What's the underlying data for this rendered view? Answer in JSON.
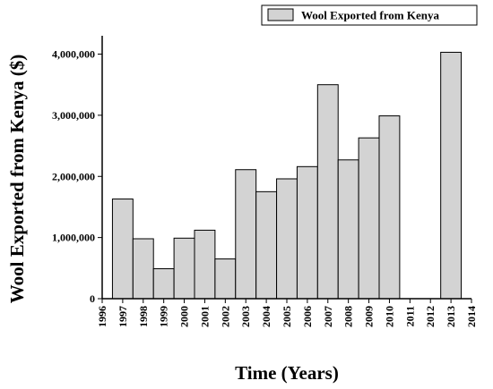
{
  "chart_data": {
    "type": "bar",
    "title": "",
    "xlabel": "Time (Years)",
    "ylabel": "Wool Exported from Kenya ($)",
    "legend": {
      "position": "top-right",
      "entries": [
        "Wool Exported from Kenya"
      ]
    },
    "xlim": [
      1996,
      2014
    ],
    "x_ticks": [
      "1996",
      "1997",
      "1998",
      "1999",
      "2000",
      "2001",
      "2002",
      "2003",
      "2004",
      "2005",
      "2006",
      "2007",
      "2008",
      "2009",
      "2010",
      "2011",
      "2012",
      "2013",
      "2014"
    ],
    "ylim": [
      0,
      4300000
    ],
    "y_ticks": [
      0,
      1000000,
      2000000,
      3000000,
      4000000
    ],
    "y_tick_labels": [
      "0",
      "1,000,000",
      "2,000,000",
      "3,000,000",
      "4,000,000"
    ],
    "grid": false,
    "series": [
      {
        "name": "Wool Exported from Kenya",
        "color": "#d3d3d3",
        "x": [
          1997,
          1998,
          1999,
          2000,
          2001,
          2002,
          2003,
          2004,
          2005,
          2006,
          2007,
          2008,
          2009,
          2010,
          2013
        ],
        "values": [
          1630000,
          980000,
          490000,
          990000,
          1120000,
          650000,
          2110000,
          1750000,
          1960000,
          2160000,
          3500000,
          2270000,
          2630000,
          2990000,
          4030000
        ]
      }
    ]
  }
}
